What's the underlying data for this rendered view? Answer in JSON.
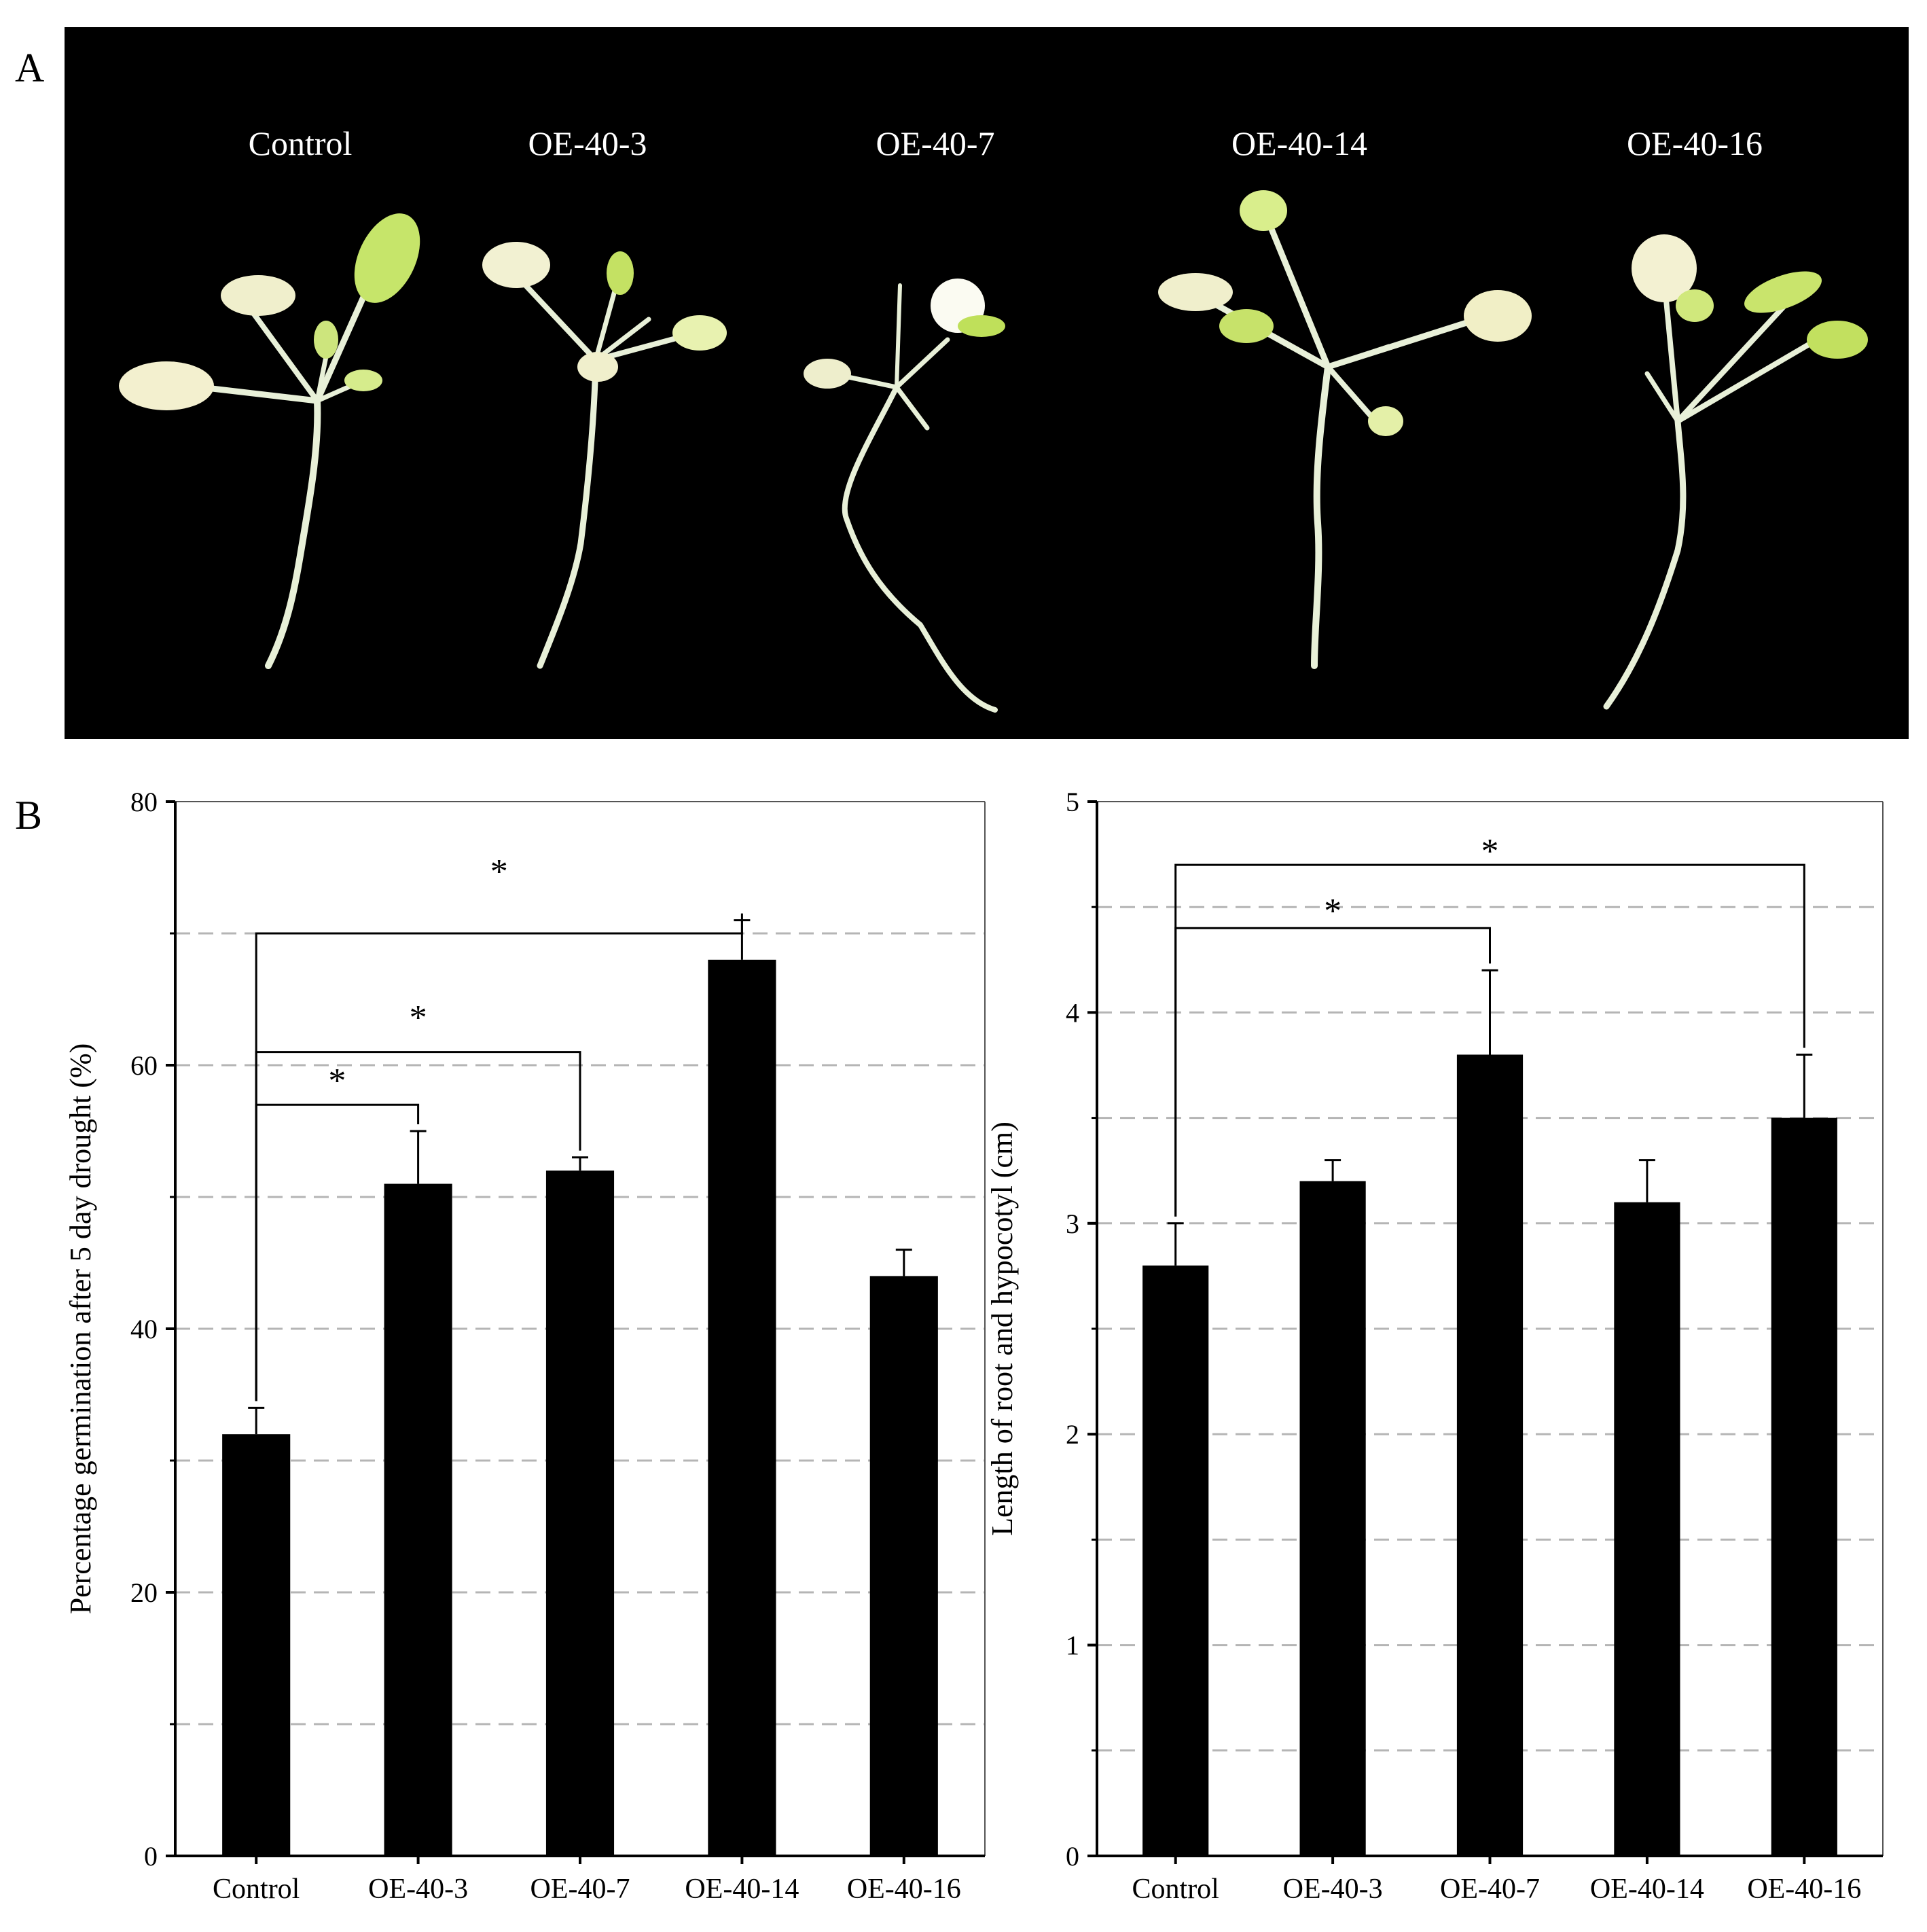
{
  "panel_a": {
    "letter": "A",
    "labels": [
      "Control",
      "OE-40-3",
      "OE-40-7",
      "OE-40-14",
      "OE-40-16"
    ]
  },
  "panel_b": {
    "letter": "B"
  },
  "chart_data": [
    {
      "type": "bar",
      "categories": [
        "Control",
        "OE-40-3",
        "OE-40-7",
        "OE-40-14",
        "OE-40-16"
      ],
      "values": [
        32,
        51,
        52,
        68,
        44
      ],
      "errors": [
        2,
        4,
        1,
        3,
        2
      ],
      "title": "",
      "xlabel": "",
      "ylabel": "Percentage germination after 5 day drought (%)",
      "ylim": [
        0,
        80
      ],
      "yticks": [
        0,
        20,
        40,
        60,
        80
      ],
      "grid": "dashed horizontal at every 10",
      "bar_color": "#000000",
      "significance": [
        {
          "from": "Control",
          "to": "OE-40-3",
          "label": "*"
        },
        {
          "from": "Control",
          "to": "OE-40-7",
          "label": "*"
        },
        {
          "from": "Control",
          "to": "OE-40-14",
          "label": "*"
        }
      ]
    },
    {
      "type": "bar",
      "categories": [
        "Control",
        "OE-40-3",
        "OE-40-7",
        "OE-40-14",
        "OE-40-16"
      ],
      "values": [
        2.8,
        3.2,
        3.8,
        3.1,
        3.5
      ],
      "errors": [
        0.2,
        0.1,
        0.4,
        0.2,
        0.3
      ],
      "title": "",
      "xlabel": "",
      "ylabel": "Length of root and hypocotyl (cm)",
      "ylim": [
        0,
        5
      ],
      "yticks": [
        0,
        1,
        2,
        3,
        4,
        5
      ],
      "grid": "dashed horizontal at every 0.5",
      "bar_color": "#000000",
      "significance": [
        {
          "from": "Control",
          "to": "OE-40-7",
          "label": "*"
        },
        {
          "from": "Control",
          "to": "OE-40-16",
          "label": "*"
        }
      ]
    }
  ]
}
